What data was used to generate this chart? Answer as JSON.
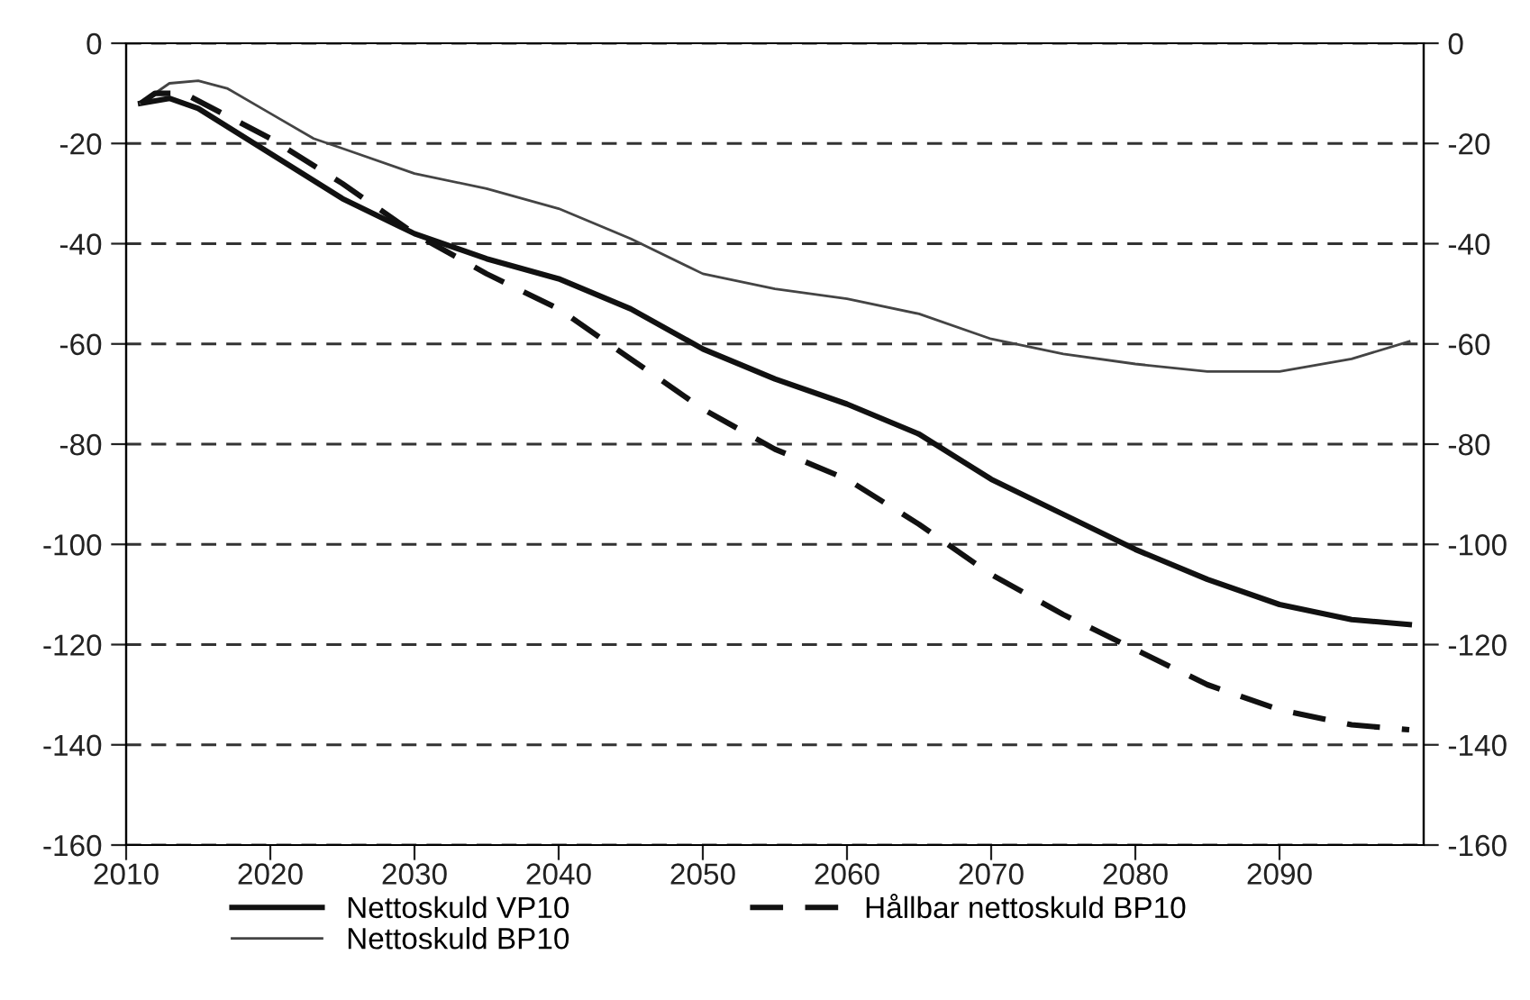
{
  "chart_data": {
    "type": "line",
    "xlim": [
      2010,
      2100
    ],
    "xticks": [
      2010,
      2020,
      2030,
      2040,
      2050,
      2060,
      2070,
      2080,
      2090
    ],
    "ylim": [
      -160,
      0
    ],
    "yticks": [
      -160,
      -140,
      -120,
      -100,
      -80,
      -60,
      -40,
      -20,
      0
    ],
    "y2lim": [
      -160,
      0
    ],
    "y2ticks": [
      -160,
      -140,
      -120,
      -100,
      -80,
      -60,
      -40,
      -20,
      0
    ],
    "grid": "y",
    "legend": "bottom",
    "marker": "none",
    "series": [
      {
        "name": "Nettoskuld VP10",
        "color": "#111111",
        "line_style": "solid",
        "x": [
          2011,
          2013,
          2015,
          2020,
          2025,
          2030,
          2035,
          2040,
          2045,
          2050,
          2055,
          2060,
          2065,
          2070,
          2075,
          2080,
          2085,
          2090,
          2095,
          2099
        ],
        "values": [
          -12,
          -11,
          -13,
          -22,
          -31,
          -38,
          -43,
          -47,
          -53,
          -61,
          -67,
          -72,
          -78,
          -87,
          -94,
          -101,
          -107,
          -112,
          -115,
          -116
        ]
      },
      {
        "name": "Nettoskuld BP10",
        "color": "#444444",
        "line_style": "solid",
        "x": [
          2011,
          2013,
          2015,
          2017,
          2020,
          2023,
          2025,
          2030,
          2035,
          2040,
          2045,
          2050,
          2055,
          2060,
          2065,
          2070,
          2075,
          2080,
          2085,
          2090,
          2095,
          2099
        ],
        "values": [
          -12,
          -8,
          -7.5,
          -9,
          -14,
          -19,
          -21,
          -26,
          -29,
          -33,
          -39,
          -46,
          -49,
          -51,
          -54,
          -59,
          -62,
          -64,
          -65.5,
          -65.5,
          -63,
          -59.5
        ]
      },
      {
        "name": "Hållbar nettoskuld BP10",
        "color": "#111111",
        "line_style": "dashed",
        "x": [
          2011,
          2012,
          2014,
          2020,
          2025,
          2030,
          2035,
          2040,
          2045,
          2050,
          2055,
          2060,
          2065,
          2070,
          2075,
          2080,
          2085,
          2090,
          2095,
          2099
        ],
        "values": [
          -12,
          -10,
          -10,
          -19,
          -28,
          -38,
          -46,
          -53,
          -63,
          -73,
          -81,
          -87,
          -96,
          -106,
          -114,
          -121,
          -128,
          -133,
          -136,
          -137
        ]
      }
    ]
  }
}
